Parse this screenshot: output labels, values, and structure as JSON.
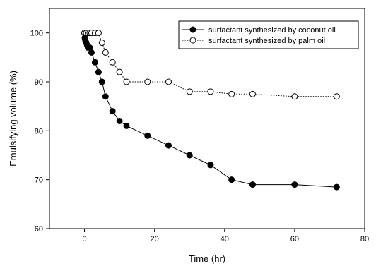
{
  "chart_data": {
    "type": "line",
    "title": "",
    "xlabel": "Time (hr)",
    "ylabel": "Emulsifying volume (%)",
    "xlim": [
      -10,
      80
    ],
    "ylim": [
      60,
      105
    ],
    "xticks": [
      0,
      20,
      40,
      60,
      80
    ],
    "yticks": [
      60,
      70,
      80,
      90,
      100
    ],
    "grid": false,
    "legend_position": "top-right",
    "series": [
      {
        "name": "surfactant synthesized by coconut oil",
        "marker": "filled-circle",
        "line_style": "solid",
        "color": "#000000",
        "x": [
          0,
          0.1,
          0.25,
          0.5,
          0.75,
          1,
          1.5,
          2,
          3,
          4,
          5,
          6,
          8,
          10,
          12,
          18,
          24,
          30,
          36,
          42,
          48,
          60,
          72
        ],
        "y": [
          100,
          99,
          98.5,
          98,
          97.5,
          97,
          97,
          96,
          94,
          92,
          90,
          87,
          84,
          82,
          81,
          79,
          77,
          75,
          73,
          70,
          69,
          69,
          68.5
        ]
      },
      {
        "name": "surfactant synthesized by palm oil",
        "marker": "open-circle",
        "line_style": "dotted",
        "color": "#000000",
        "x": [
          0,
          0.5,
          1,
          1.5,
          2,
          3,
          4,
          5,
          6,
          8,
          10,
          12,
          18,
          24,
          30,
          36,
          42,
          48,
          60,
          72
        ],
        "y": [
          100,
          100,
          100,
          100,
          100,
          100,
          100,
          98,
          96,
          94,
          92,
          90,
          90,
          90,
          88,
          88,
          87.5,
          87.5,
          87,
          87
        ]
      }
    ]
  }
}
